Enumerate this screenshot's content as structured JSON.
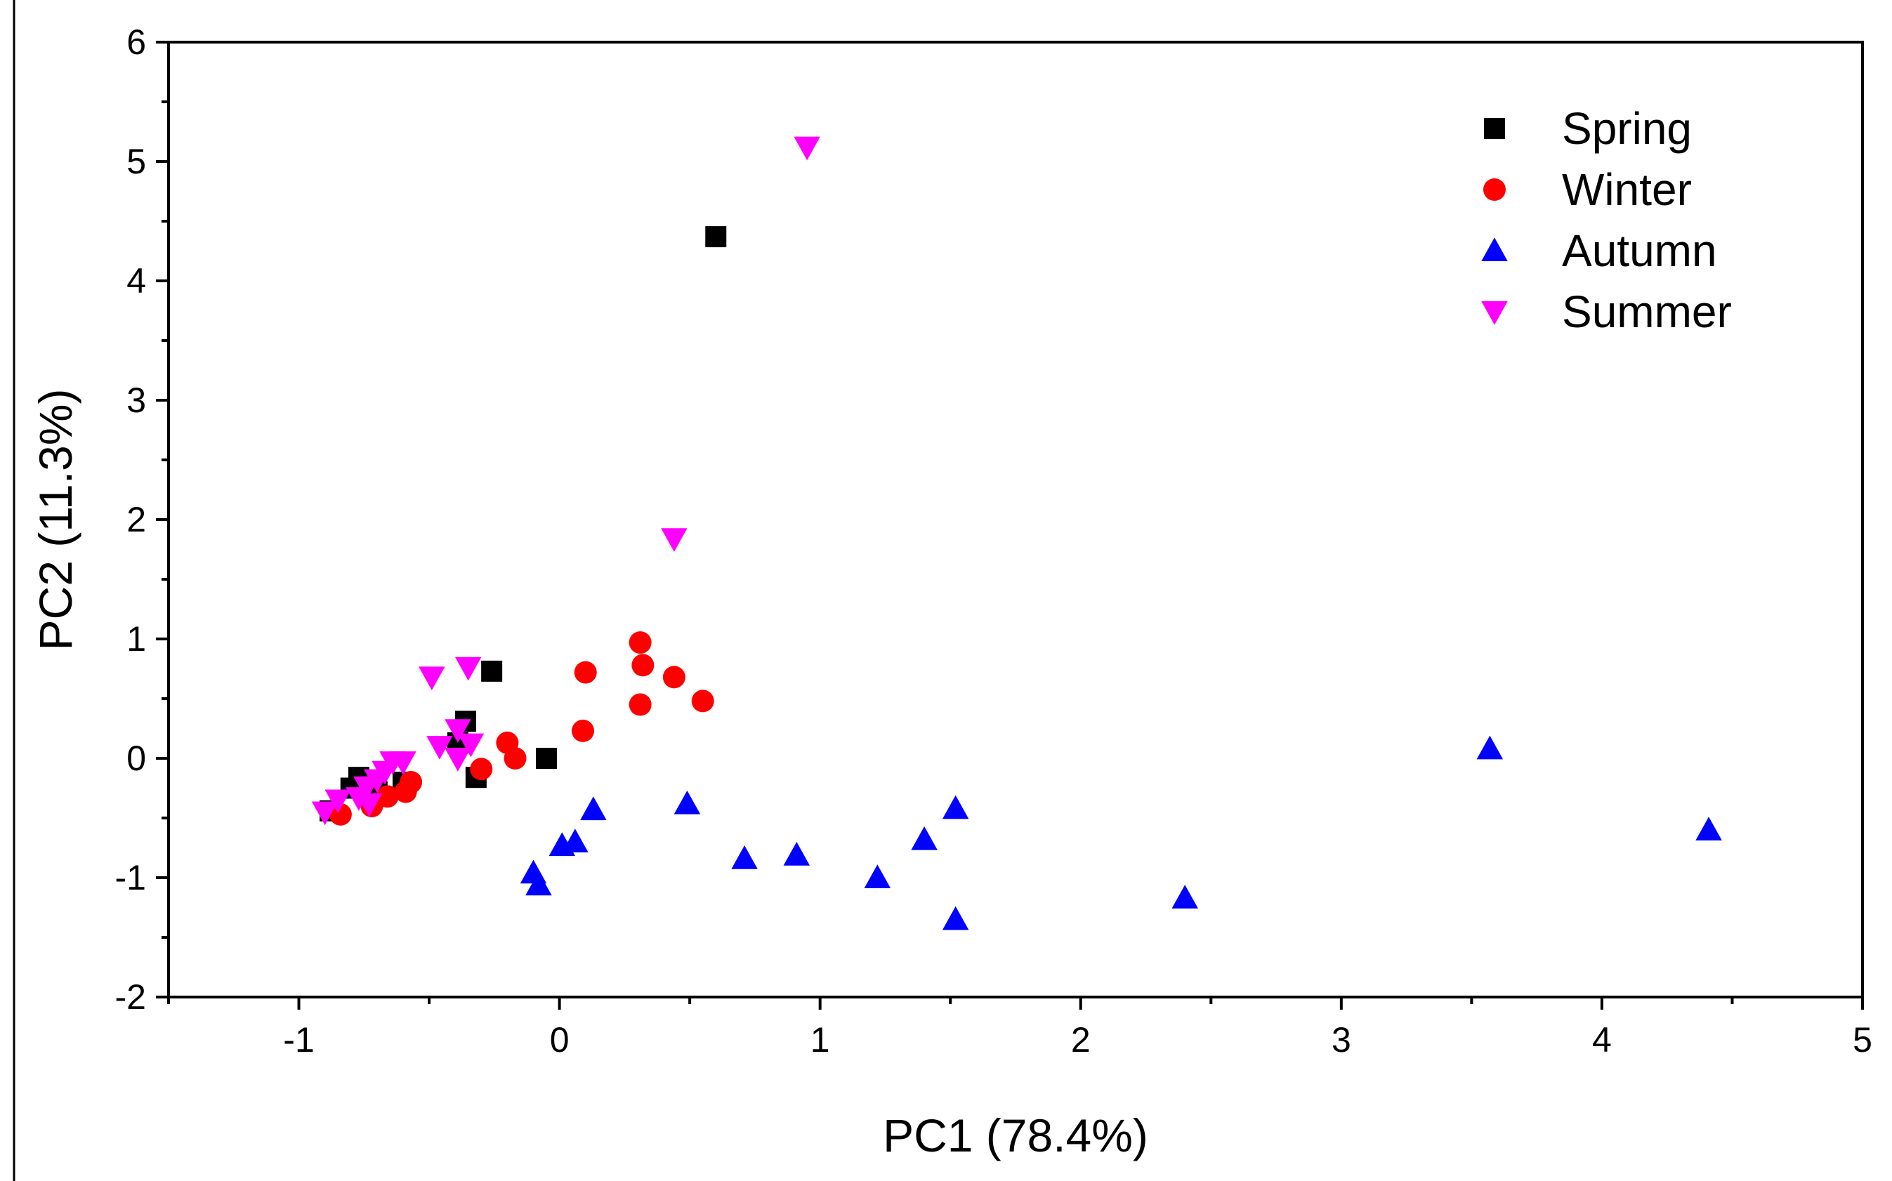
{
  "chart_data": {
    "type": "scatter",
    "title": "",
    "xlabel": "PC1 (78.4%)",
    "ylabel": "PC2 (11.3%)",
    "xlim": [
      -1.5,
      5
    ],
    "ylim": [
      -2,
      6
    ],
    "xticks": [
      -1,
      0,
      1,
      2,
      3,
      4,
      5
    ],
    "yticks": [
      -2,
      -1,
      0,
      1,
      2,
      3,
      4,
      5,
      6
    ],
    "grid": false,
    "legend_position": "top-right",
    "series": [
      {
        "name": "Spring",
        "marker": "square",
        "color": "#000000",
        "points": [
          [
            0.6,
            4.37
          ],
          [
            -0.26,
            0.73
          ],
          [
            -0.05,
            0.0
          ],
          [
            -0.36,
            0.31
          ],
          [
            -0.39,
            0.13
          ],
          [
            -0.32,
            -0.16
          ],
          [
            -0.77,
            -0.16
          ],
          [
            -0.8,
            -0.25
          ],
          [
            -0.88,
            -0.44
          ],
          [
            -0.7,
            -0.28
          ],
          [
            -0.6,
            -0.2
          ]
        ]
      },
      {
        "name": "Winter",
        "marker": "circle",
        "color": "#ff0000",
        "points": [
          [
            0.31,
            0.97
          ],
          [
            0.32,
            0.78
          ],
          [
            0.44,
            0.68
          ],
          [
            0.1,
            0.72
          ],
          [
            0.31,
            0.45
          ],
          [
            0.55,
            0.48
          ],
          [
            0.09,
            0.23
          ],
          [
            -0.2,
            0.13
          ],
          [
            -0.17,
            0.0
          ],
          [
            -0.3,
            -0.09
          ],
          [
            -0.57,
            -0.2
          ],
          [
            -0.59,
            -0.28
          ],
          [
            -0.66,
            -0.32
          ],
          [
            -0.84,
            -0.47
          ],
          [
            -0.72,
            -0.4
          ]
        ]
      },
      {
        "name": "Autumn",
        "marker": "triangle-up",
        "color": "#0000ff",
        "points": [
          [
            3.57,
            0.08
          ],
          [
            4.41,
            -0.6
          ],
          [
            0.49,
            -0.38
          ],
          [
            0.13,
            -0.43
          ],
          [
            1.52,
            -0.42
          ],
          [
            1.4,
            -0.68
          ],
          [
            0.06,
            -0.7
          ],
          [
            0.01,
            -0.73
          ],
          [
            0.71,
            -0.84
          ],
          [
            0.91,
            -0.81
          ],
          [
            1.22,
            -1.0
          ],
          [
            -0.1,
            -0.96
          ],
          [
            -0.08,
            -1.06
          ],
          [
            1.52,
            -1.35
          ],
          [
            2.4,
            -1.17
          ]
        ]
      },
      {
        "name": "Summer",
        "marker": "triangle-down",
        "color": "#ff00ff",
        "points": [
          [
            0.95,
            5.12
          ],
          [
            0.44,
            1.84
          ],
          [
            -0.35,
            0.76
          ],
          [
            -0.49,
            0.68
          ],
          [
            -0.39,
            0.24
          ],
          [
            -0.46,
            0.1
          ],
          [
            -0.34,
            0.12
          ],
          [
            -0.39,
            0.0
          ],
          [
            -0.64,
            -0.03
          ],
          [
            -0.6,
            -0.03
          ],
          [
            -0.67,
            -0.11
          ],
          [
            -0.7,
            -0.18
          ],
          [
            -0.74,
            -0.24
          ],
          [
            -0.77,
            -0.33
          ],
          [
            -0.85,
            -0.35
          ],
          [
            -0.9,
            -0.45
          ],
          [
            -0.73,
            -0.38
          ]
        ]
      }
    ]
  }
}
